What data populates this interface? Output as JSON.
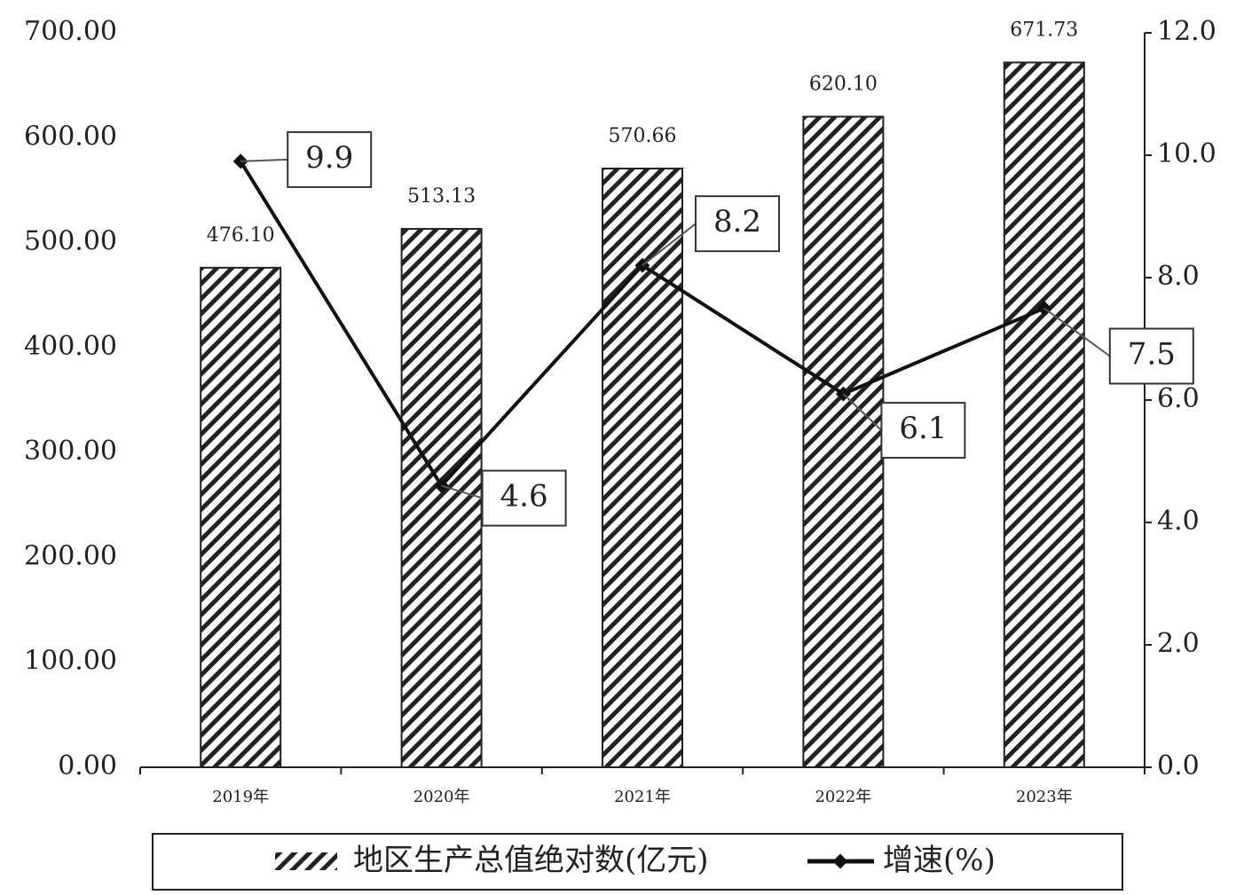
{
  "chart_data": {
    "type": "bar+line",
    "categories": [
      "2019年",
      "2020年",
      "2021年",
      "2022年",
      "2023年"
    ],
    "series": [
      {
        "name": "地区生产总值绝对数(亿元)",
        "type": "bar",
        "color": "#222222",
        "values": [
          476.1,
          513.13,
          570.66,
          620.1,
          671.73
        ],
        "value_labels": [
          "476.10",
          "513.13",
          "570.66",
          "620.10",
          "671.73"
        ]
      },
      {
        "name": "增速(%)",
        "type": "line",
        "axis": "y2",
        "color": "#111111",
        "values": [
          9.9,
          4.6,
          8.2,
          6.1,
          7.5
        ]
      }
    ],
    "ylim": [
      0,
      700
    ],
    "yticks": [
      {
        "value": 0,
        "label": "0.00"
      },
      {
        "value": 100,
        "label": "100.00"
      },
      {
        "value": 200,
        "label": "200.00"
      },
      {
        "value": 300,
        "label": "300.00"
      },
      {
        "value": 400,
        "label": "400.00"
      },
      {
        "value": 500,
        "label": "500.00"
      },
      {
        "value": 600,
        "label": "600.00"
      },
      {
        "value": 700,
        "label": "700.00"
      }
    ],
    "y2lim": [
      0,
      12
    ],
    "y2ticks": [
      {
        "value": 0,
        "label": "0.0"
      },
      {
        "value": 2,
        "label": "2.0"
      },
      {
        "value": 4,
        "label": "4.0"
      },
      {
        "value": 6,
        "label": "6.0"
      },
      {
        "value": 8,
        "label": "8.0"
      },
      {
        "value": 10,
        "label": "10.0"
      },
      {
        "value": 12,
        "label": "12.0"
      }
    ],
    "legend": "bottom"
  }
}
